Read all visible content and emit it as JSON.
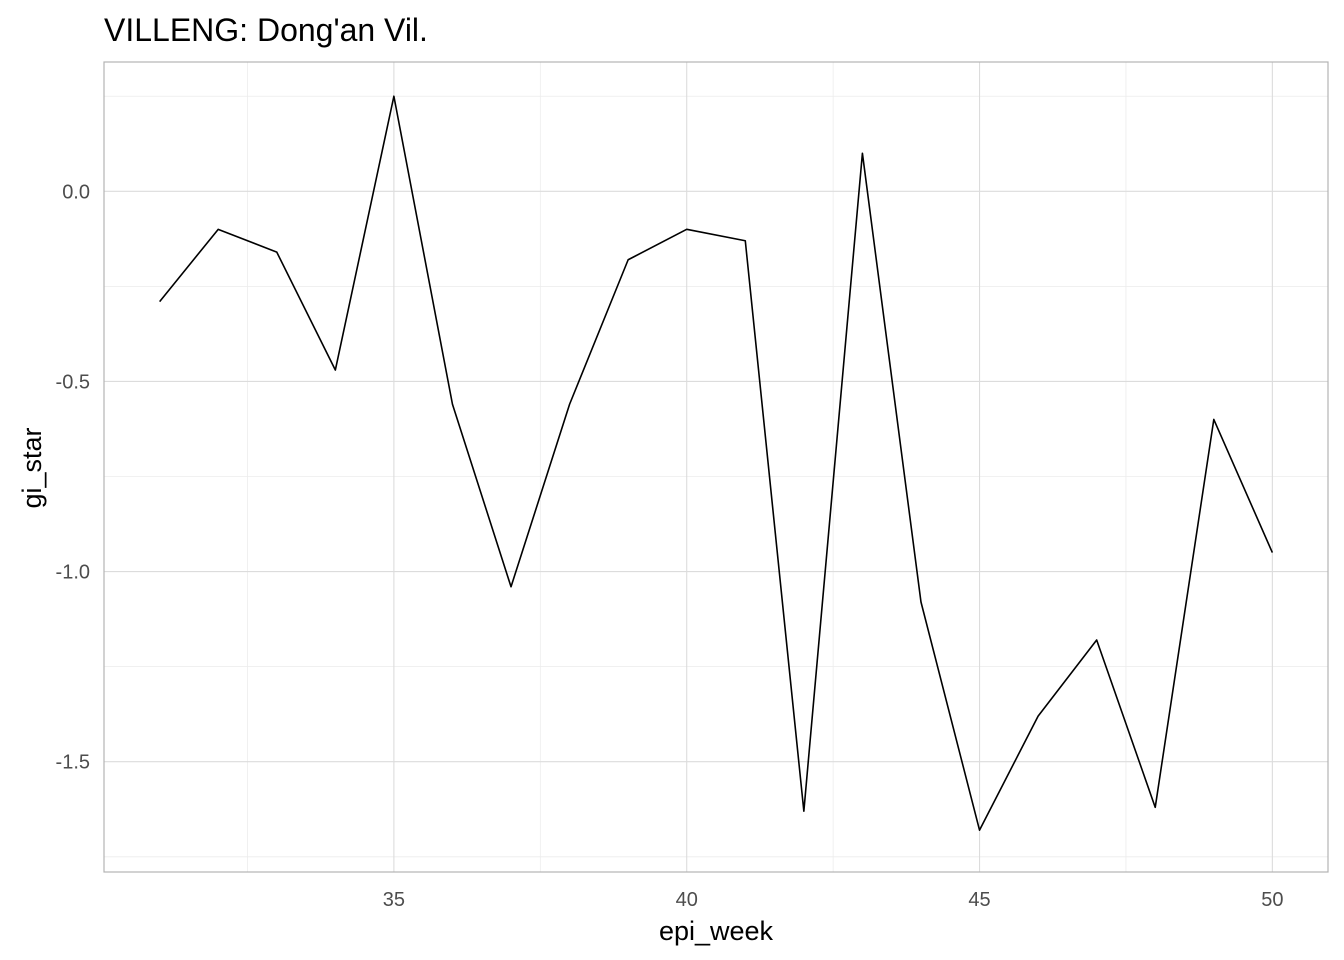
{
  "chart_data": {
    "type": "line",
    "title": "VILLENG: Dong'an Vil.",
    "xlabel": "epi_week",
    "ylabel": "gi_star",
    "x": [
      31,
      32,
      33,
      34,
      35,
      36,
      37,
      38,
      39,
      40,
      41,
      42,
      43,
      44,
      45,
      46,
      47,
      48,
      49,
      50
    ],
    "series": [
      {
        "values": [
          -0.29,
          -0.1,
          -0.16,
          -0.47,
          0.25,
          -0.56,
          -1.04,
          -0.56,
          -0.18,
          -0.1,
          -0.13,
          -1.63,
          0.1,
          -1.08,
          -1.68,
          -1.38,
          -1.18,
          -1.62,
          -0.6,
          -0.95
        ]
      }
    ],
    "xlim": [
      30.05,
      50.95
    ],
    "ylim": [
      -1.79,
      0.34
    ],
    "x_ticks": [
      35,
      40,
      45,
      50
    ],
    "y_ticks": [
      0.0,
      -0.5,
      -1.0,
      -1.5
    ],
    "x_tick_labels": [
      "35",
      "40",
      "45",
      "50"
    ],
    "y_tick_labels": [
      "0.0",
      "-0.5",
      "-1.0",
      "-1.5"
    ],
    "grid": true,
    "line_color": "#000000"
  }
}
